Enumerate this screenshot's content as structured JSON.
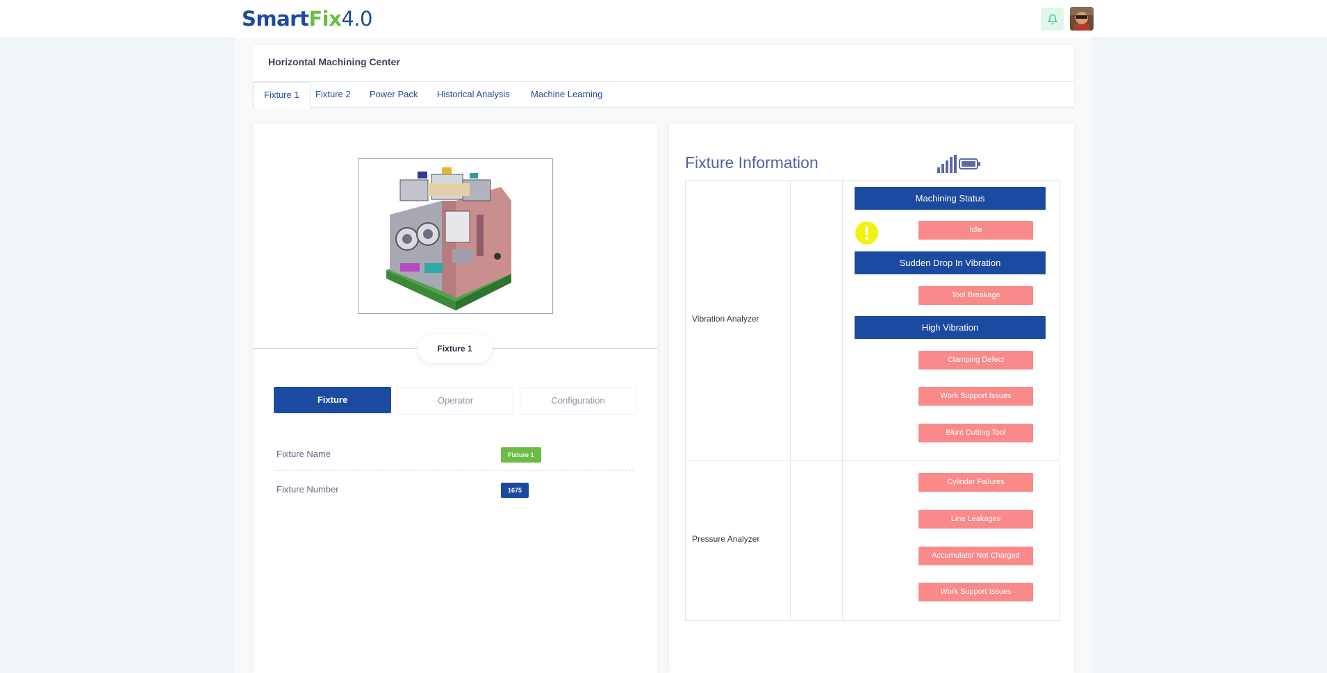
{
  "brand": {
    "part1": "Smart",
    "part2": "Fix",
    "part3": "4.0"
  },
  "header": {
    "notifications_icon": "bell-icon",
    "avatar_alt": "user avatar"
  },
  "page": {
    "title": "Horizontal Machining Center"
  },
  "tabs": [
    {
      "label": "Fixture 1",
      "active": true
    },
    {
      "label": "Fixture 2",
      "active": false
    },
    {
      "label": "Power Pack",
      "active": false
    },
    {
      "label": "Historical Analysis",
      "active": false
    },
    {
      "label": "Machine Learning",
      "active": false
    }
  ],
  "fixture_panel": {
    "pill_label": "Fixture 1",
    "segments": [
      {
        "label": "Fixture",
        "active": true
      },
      {
        "label": "Operator",
        "active": false
      },
      {
        "label": "Configuration",
        "active": false
      }
    ],
    "info": [
      {
        "label": "Fixture Name",
        "value": "Fixture 1",
        "color": "#6bbd45"
      },
      {
        "label": "Fixture Number",
        "value": "1675",
        "color": "#1b4aa1"
      }
    ]
  },
  "fixture_info": {
    "title": "Fixture Information",
    "icons": [
      "signal-bars-icon",
      "battery-icon"
    ],
    "vibration": {
      "label": "Vibration Analyzer",
      "status_bars": [
        "Machining Status",
        "Sudden Drop In Vibration",
        "High Vibration"
      ],
      "buttons": [
        "Idle",
        "Tool Breakage",
        "Clamping Defect",
        "Work Support Issues",
        "Blunt Cutting Tool"
      ]
    },
    "pressure": {
      "label": "Pressure Analyzer",
      "buttons": [
        "Cylinder Failures",
        "Line Leakages",
        "Accumulator Not Charged",
        "Work Support Issues"
      ]
    }
  },
  "colors": {
    "primary": "#1b4aa1",
    "green": "#6bbd45",
    "alert": "#fa8989",
    "warning": "#f2f20f"
  }
}
